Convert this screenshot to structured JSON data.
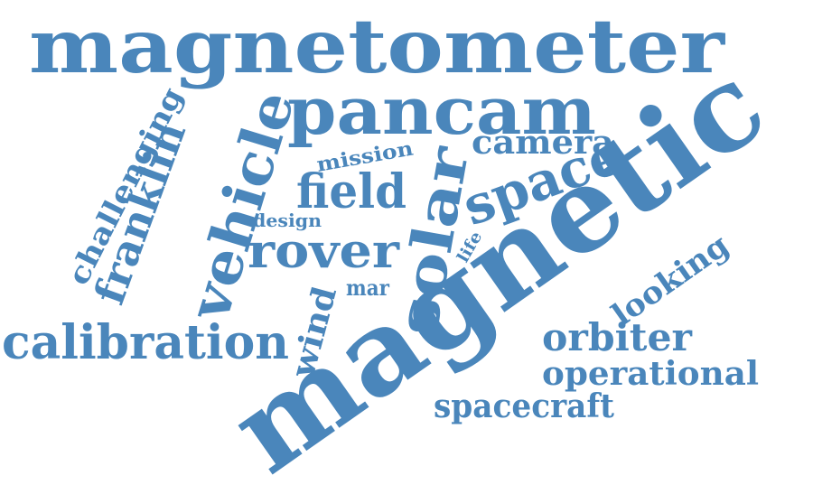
{
  "color": "#4a86bb",
  "words": {
    "magnetometer": "magnetometer",
    "pancam": "pancam",
    "magnetic": "magnetic",
    "calibration": "calibration",
    "vehicle": "vehicle",
    "franklin": "franklin",
    "challenging": "challenging",
    "solar": "solar",
    "space": "space",
    "field": "field",
    "rover": "rover",
    "camera": "camera",
    "mission": "mission",
    "design": "design",
    "wind": "wind",
    "mar": "mar",
    "life": "life",
    "looking": "looking",
    "orbiter": "orbiter",
    "operational": "operational",
    "spacecraft": "spacecraft"
  }
}
